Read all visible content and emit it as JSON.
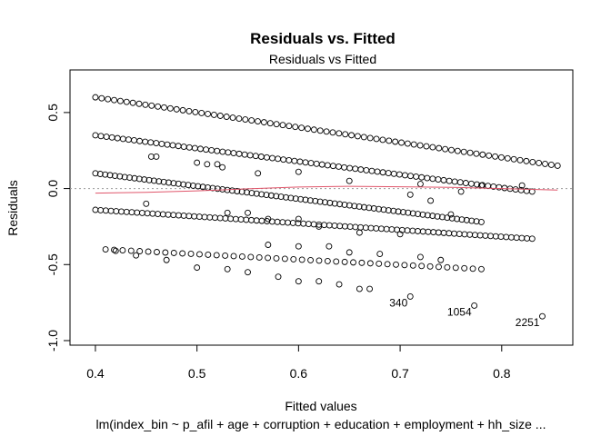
{
  "chart_data": {
    "type": "scatter",
    "title": "Residuals vs. Fitted",
    "subtitle": "Residuals vs Fitted",
    "xlabel": "Fitted values",
    "xlabel2": "lm(index_bin ~ p_afil + age + corruption + education + employment + hh_size ...",
    "ylabel": "Residuals",
    "xlim": [
      0.375,
      0.87
    ],
    "ylim": [
      -1.03,
      0.78
    ],
    "xticks": [
      "0.4",
      "0.5",
      "0.6",
      "0.7",
      "0.8"
    ],
    "xtick_values": [
      0.4,
      0.5,
      0.6,
      0.7,
      0.8
    ],
    "yticks": [
      "-1.0",
      "-0.5",
      "0.0",
      "0.5"
    ],
    "ytick_values": [
      -1.0,
      -0.5,
      0.0,
      0.5
    ],
    "reference_line": {
      "y": 0,
      "style": "dotted",
      "color": "#999999"
    },
    "smooth_color": "#e0566b",
    "smooth": [
      [
        0.4,
        -0.03
      ],
      [
        0.45,
        -0.025
      ],
      [
        0.5,
        -0.015
      ],
      [
        0.55,
        -0.002
      ],
      [
        0.6,
        0.01
      ],
      [
        0.65,
        0.015
      ],
      [
        0.7,
        0.012
      ],
      [
        0.75,
        0.008
      ],
      [
        0.8,
        0.0
      ],
      [
        0.855,
        -0.01
      ]
    ],
    "bands": [
      {
        "x0": 0.4,
        "x1": 0.855,
        "y0": 0.6,
        "y1": 0.15,
        "n": 75
      },
      {
        "x0": 0.4,
        "x1": 0.83,
        "y0": 0.35,
        "y1": -0.02,
        "n": 80
      },
      {
        "x0": 0.4,
        "x1": 0.78,
        "y0": 0.1,
        "y1": -0.22,
        "n": 80
      },
      {
        "x0": 0.4,
        "x1": 0.83,
        "y0": -0.14,
        "y1": -0.33,
        "n": 85
      },
      {
        "x0": 0.41,
        "x1": 0.78,
        "y0": -0.4,
        "y1": -0.53,
        "n": 45
      }
    ],
    "points": [
      [
        0.455,
        0.21
      ],
      [
        0.46,
        0.21
      ],
      [
        0.5,
        0.17
      ],
      [
        0.51,
        0.16
      ],
      [
        0.52,
        0.16
      ],
      [
        0.525,
        0.14
      ],
      [
        0.56,
        0.1
      ],
      [
        0.6,
        0.11
      ],
      [
        0.65,
        0.05
      ],
      [
        0.72,
        0.03
      ],
      [
        0.76,
        -0.02
      ],
      [
        0.78,
        0.02
      ],
      [
        0.82,
        0.02
      ],
      [
        0.45,
        -0.1
      ],
      [
        0.53,
        -0.16
      ],
      [
        0.55,
        -0.16
      ],
      [
        0.57,
        -0.2
      ],
      [
        0.6,
        -0.2
      ],
      [
        0.62,
        -0.25
      ],
      [
        0.66,
        -0.29
      ],
      [
        0.7,
        -0.3
      ],
      [
        0.71,
        -0.04
      ],
      [
        0.73,
        -0.08
      ],
      [
        0.75,
        -0.17
      ],
      [
        0.42,
        -0.41
      ],
      [
        0.44,
        -0.44
      ],
      [
        0.47,
        -0.47
      ],
      [
        0.5,
        -0.52
      ],
      [
        0.53,
        -0.53
      ],
      [
        0.55,
        -0.55
      ],
      [
        0.58,
        -0.58
      ],
      [
        0.6,
        -0.61
      ],
      [
        0.62,
        -0.61
      ],
      [
        0.64,
        -0.63
      ],
      [
        0.66,
        -0.66
      ],
      [
        0.67,
        -0.66
      ],
      [
        0.57,
        -0.37
      ],
      [
        0.6,
        -0.38
      ],
      [
        0.63,
        -0.38
      ],
      [
        0.65,
        -0.42
      ],
      [
        0.68,
        -0.43
      ],
      [
        0.72,
        -0.45
      ],
      [
        0.74,
        -0.47
      ]
    ],
    "labeled_points": [
      {
        "label": "340",
        "x": 0.71,
        "y": -0.71
      },
      {
        "label": "1054",
        "x": 0.773,
        "y": -0.77
      },
      {
        "label": "2251",
        "x": 0.84,
        "y": -0.84
      }
    ]
  }
}
